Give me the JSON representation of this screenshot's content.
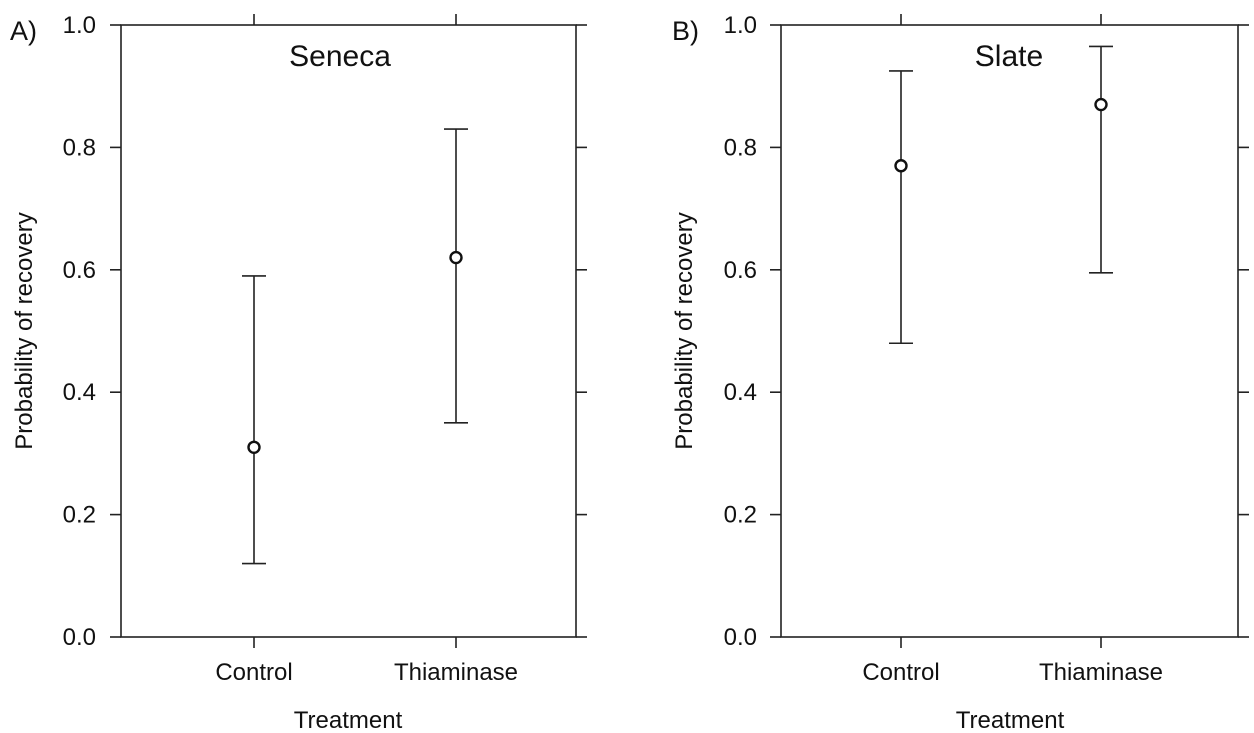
{
  "chart_data": [
    {
      "type": "scatter",
      "panel_label": "A)",
      "title": "Seneca",
      "xlabel": "Treatment",
      "ylabel": "Probability of recovery",
      "categories": [
        "Control",
        "Thiaminase"
      ],
      "values": [
        0.31,
        0.62
      ],
      "lower": [
        0.12,
        0.35
      ],
      "upper": [
        0.59,
        0.83
      ],
      "ylim": [
        0.0,
        1.0
      ],
      "yticks": [
        "0.0",
        "0.2",
        "0.4",
        "0.6",
        "0.8",
        "1.0"
      ],
      "grid": false
    },
    {
      "type": "scatter",
      "panel_label": "B)",
      "title": "Slate",
      "xlabel": "Treatment",
      "ylabel": "Probability of recovery",
      "categories": [
        "Control",
        "Thiaminase"
      ],
      "values": [
        0.77,
        0.87
      ],
      "lower": [
        0.48,
        0.595
      ],
      "upper": [
        0.925,
        0.965
      ],
      "ylim": [
        0.0,
        1.0
      ],
      "yticks": [
        "0.0",
        "0.2",
        "0.4",
        "0.6",
        "0.8",
        "1.0"
      ],
      "grid": false
    }
  ]
}
